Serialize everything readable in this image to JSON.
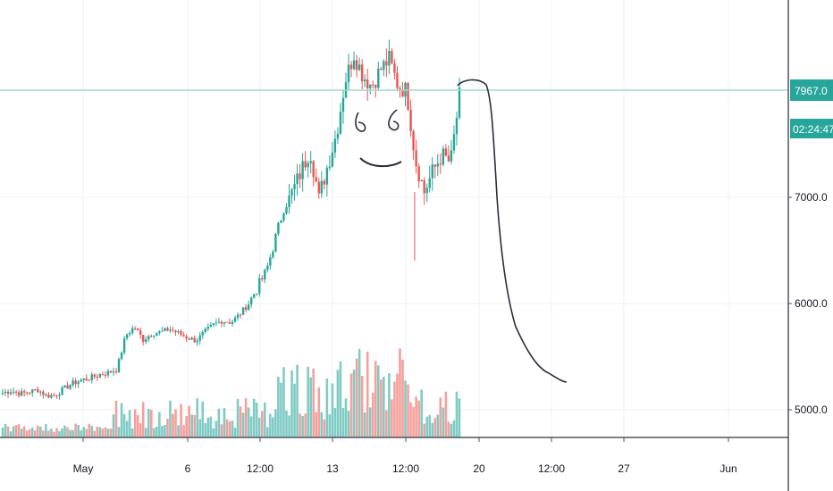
{
  "colors": {
    "up": "#26a69a",
    "down": "#ef5350",
    "vol_up": "#80cbc4",
    "vol_down": "#f4a09d",
    "grid": "#eef0f3",
    "price_line": "#9fd8d4",
    "badge": "#26a69a",
    "drawing": "#2a2e39"
  },
  "chart_data": {
    "type": "candlestick",
    "price_axis": {
      "ticks": [
        "7000.0",
        "6000.0",
        "5000.0"
      ],
      "range": [
        4700,
        8850
      ]
    },
    "time_axis": {
      "ticks": [
        "May",
        "6",
        "12:00",
        "13",
        "12:00",
        "20",
        "12:00",
        "27",
        "Jun"
      ]
    },
    "last_price": "7967.0",
    "countdown": "02:24:47",
    "ohlc_close_path": [
      5160,
      5180,
      5150,
      5170,
      5190,
      5130,
      5140,
      5200,
      5250,
      5280,
      5300,
      5330,
      5350,
      5380,
      5700,
      5780,
      5660,
      5720,
      5730,
      5760,
      5720,
      5680,
      5650,
      5730,
      5800,
      5840,
      5820,
      5900,
      6000,
      6150,
      6300,
      6600,
      6900,
      7050,
      7250,
      7450,
      7000,
      7300,
      7600,
      8100,
      8350,
      8150,
      8050,
      8200,
      8300,
      8050,
      8000,
      7350,
      7050,
      7250,
      7400,
      7320,
      7950
    ]
  },
  "drawing": {
    "type": "freehand",
    "description_shown": false
  }
}
